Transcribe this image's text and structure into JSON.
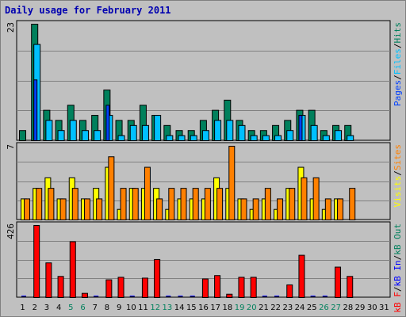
{
  "title": "Daily usage for February 2011",
  "colors": {
    "hits": "#00805c",
    "files": "#00c0ff",
    "pages": "#0040ff",
    "visits": "#ffff00",
    "sites": "#ff8000",
    "kb_in": "#0000ff",
    "kb_out": "#00805c",
    "kb_f": "#ff0000",
    "grid": "#808080",
    "day_highlight": "#00805c",
    "day_normal": "#000000"
  },
  "chart_data": [
    {
      "type": "bar",
      "panel": "top",
      "max_label": "23",
      "ylim": [
        0,
        23
      ],
      "categories": [
        "1",
        "2",
        "3",
        "4",
        "5",
        "6",
        "7",
        "8",
        "9",
        "10",
        "11",
        "12",
        "13",
        "14",
        "15",
        "16",
        "17",
        "18",
        "19",
        "20",
        "21",
        "22",
        "23",
        "24",
        "25",
        "26",
        "27",
        "28",
        "29",
        "30",
        "31"
      ],
      "series": [
        {
          "name": "Hits",
          "values": [
            2,
            23,
            6,
            4,
            7,
            4,
            5,
            10,
            4,
            4,
            7,
            5,
            3,
            2,
            2,
            4,
            6,
            8,
            4,
            2,
            2,
            3,
            4,
            6,
            6,
            2,
            3,
            3,
            0,
            0,
            0
          ]
        },
        {
          "name": "Files",
          "values": [
            0,
            19,
            4,
            2,
            4,
            2,
            2,
            5,
            1,
            3,
            3,
            5,
            1,
            1,
            1,
            2,
            4,
            4,
            3,
            1,
            1,
            1,
            2,
            5,
            3,
            1,
            2,
            1,
            0,
            0,
            0
          ]
        },
        {
          "name": "Pages",
          "values": [
            0,
            12,
            0,
            0,
            0,
            0,
            0,
            7,
            0,
            0,
            0,
            0,
            0,
            0,
            0,
            0,
            0,
            0,
            0,
            0,
            0,
            0,
            0,
            5,
            0,
            0,
            0,
            0,
            0,
            0,
            0
          ]
        }
      ],
      "side_label": [
        "Pages",
        "/",
        "Files",
        "/",
        "Hits"
      ]
    },
    {
      "type": "bar",
      "panel": "middle",
      "max_label": "7",
      "ylim": [
        0,
        7
      ],
      "categories": [
        "1",
        "2",
        "3",
        "4",
        "5",
        "6",
        "7",
        "8",
        "9",
        "10",
        "11",
        "12",
        "13",
        "14",
        "15",
        "16",
        "17",
        "18",
        "19",
        "20",
        "21",
        "22",
        "23",
        "24",
        "25",
        "26",
        "27",
        "28",
        "29",
        "30",
        "31"
      ],
      "series": [
        {
          "name": "Visits",
          "values": [
            2,
            3,
            4,
            2,
            4,
            2,
            3,
            5,
            1,
            3,
            3,
            3,
            1,
            2,
            2,
            2,
            4,
            3,
            2,
            1,
            2,
            1,
            3,
            5,
            2,
            1,
            2,
            0,
            0,
            0,
            0
          ]
        },
        {
          "name": "Sites",
          "values": [
            2,
            3,
            3,
            2,
            3,
            2,
            2,
            6,
            3,
            3,
            5,
            2,
            3,
            3,
            3,
            3,
            3,
            7,
            2,
            2,
            3,
            2,
            3,
            4,
            4,
            2,
            2,
            3,
            0,
            0,
            0
          ]
        }
      ],
      "side_label": [
        "Visits",
        "/",
        "Sites"
      ]
    },
    {
      "type": "bar",
      "panel": "bottom",
      "max_label": "426",
      "ylim": [
        0,
        426
      ],
      "categories": [
        "1",
        "2",
        "3",
        "4",
        "5",
        "6",
        "7",
        "8",
        "9",
        "10",
        "11",
        "12",
        "13",
        "14",
        "15",
        "16",
        "17",
        "18",
        "19",
        "20",
        "21",
        "22",
        "23",
        "24",
        "25",
        "26",
        "27",
        "28",
        "29",
        "30",
        "31"
      ],
      "series": [
        {
          "name": "KBytes In",
          "values": [
            6,
            6,
            6,
            6,
            6,
            6,
            6,
            6,
            6,
            6,
            6,
            6,
            6,
            6,
            6,
            6,
            6,
            6,
            6,
            6,
            6,
            6,
            6,
            6,
            6,
            6,
            6,
            6,
            0,
            0,
            0
          ]
        },
        {
          "name": "KBytes Out",
          "values": [
            6,
            6,
            6,
            6,
            6,
            6,
            6,
            6,
            6,
            6,
            6,
            6,
            6,
            6,
            6,
            6,
            6,
            6,
            6,
            6,
            6,
            6,
            6,
            6,
            6,
            6,
            6,
            6,
            0,
            0,
            0
          ]
        },
        {
          "name": "KBytes F",
          "values": [
            0,
            426,
            205,
            125,
            330,
            25,
            0,
            105,
            120,
            0,
            115,
            225,
            0,
            0,
            0,
            110,
            130,
            20,
            120,
            120,
            0,
            0,
            75,
            250,
            0,
            0,
            180,
            125,
            0,
            0,
            0
          ]
        }
      ],
      "side_label": [
        "kB F",
        "/",
        "kB In",
        "/",
        "kB Out"
      ]
    }
  ],
  "day_label_highlights": [
    "5",
    "6",
    "12",
    "13",
    "19",
    "20",
    "26",
    "27"
  ]
}
